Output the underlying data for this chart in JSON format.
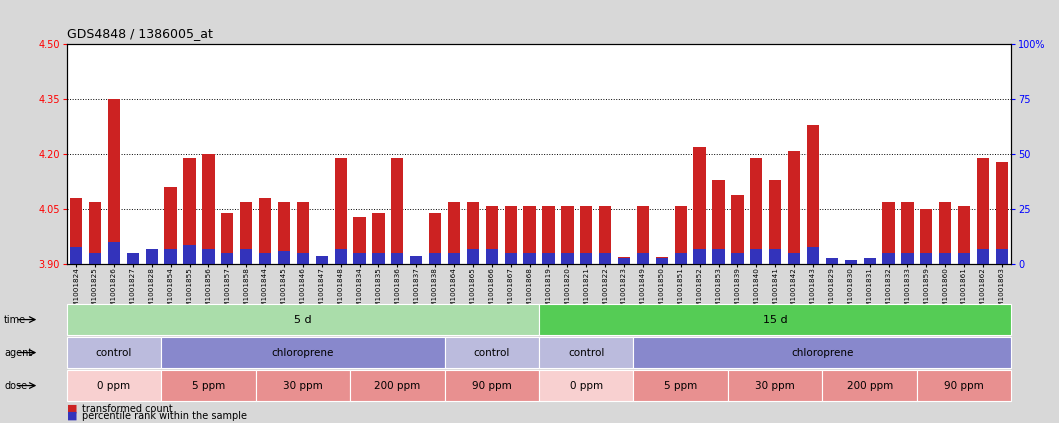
{
  "title": "GDS4848 / 1386005_at",
  "ylim": [
    3.9,
    4.5
  ],
  "yticks": [
    3.9,
    4.05,
    4.2,
    4.35,
    4.5
  ],
  "right_yticks": [
    0,
    25,
    50,
    75,
    100
  ],
  "right_ylim": [
    0,
    100
  ],
  "samples": [
    "GSM1001824",
    "GSM1001825",
    "GSM1001826",
    "GSM1001827",
    "GSM1001828",
    "GSM1001854",
    "GSM1001855",
    "GSM1001856",
    "GSM1001857",
    "GSM1001858",
    "GSM1001844",
    "GSM1001845",
    "GSM1001846",
    "GSM1001847",
    "GSM1001848",
    "GSM1001834",
    "GSM1001835",
    "GSM1001836",
    "GSM1001837",
    "GSM1001838",
    "GSM1001864",
    "GSM1001865",
    "GSM1001866",
    "GSM1001867",
    "GSM1001868",
    "GSM1001819",
    "GSM1001820",
    "GSM1001821",
    "GSM1001822",
    "GSM1001823",
    "GSM1001849",
    "GSM1001850",
    "GSM1001851",
    "GSM1001852",
    "GSM1001853",
    "GSM1001839",
    "GSM1001840",
    "GSM1001841",
    "GSM1001842",
    "GSM1001843",
    "GSM1001829",
    "GSM1001830",
    "GSM1001831",
    "GSM1001832",
    "GSM1001833",
    "GSM1001859",
    "GSM1001860",
    "GSM1001861",
    "GSM1001862",
    "GSM1001863"
  ],
  "red_values": [
    4.08,
    4.07,
    4.35,
    3.92,
    3.91,
    4.11,
    4.19,
    4.2,
    4.04,
    4.07,
    4.08,
    4.07,
    4.07,
    3.91,
    4.19,
    4.03,
    4.04,
    4.19,
    3.91,
    4.04,
    4.07,
    4.07,
    4.06,
    4.06,
    4.06,
    4.06,
    4.06,
    4.06,
    4.06,
    3.92,
    4.06,
    3.92,
    4.06,
    4.22,
    4.13,
    4.09,
    4.19,
    4.13,
    4.21,
    4.28,
    3.91,
    3.91,
    3.91,
    4.07,
    4.07,
    4.05,
    4.07,
    4.06,
    4.19,
    4.18
  ],
  "blue_values_pct": [
    8,
    5,
    10,
    5,
    7,
    7,
    9,
    7,
    5,
    7,
    5,
    6,
    5,
    4,
    7,
    5,
    5,
    5,
    4,
    5,
    5,
    7,
    7,
    5,
    5,
    5,
    5,
    5,
    5,
    3,
    5,
    3,
    5,
    7,
    7,
    5,
    7,
    7,
    5,
    8,
    3,
    2,
    3,
    5,
    5,
    5,
    5,
    5,
    7,
    7
  ],
  "base": 3.9,
  "chart_range": 0.6,
  "time_groups": [
    {
      "label": "5 d",
      "start": 0,
      "end": 25,
      "color": "#aaddaa"
    },
    {
      "label": "15 d",
      "start": 25,
      "end": 50,
      "color": "#55cc55"
    }
  ],
  "agent_groups": [
    {
      "label": "control",
      "start": 0,
      "end": 5,
      "color": "#bbbbdd"
    },
    {
      "label": "chloroprene",
      "start": 5,
      "end": 20,
      "color": "#8888cc"
    },
    {
      "label": "control",
      "start": 20,
      "end": 25,
      "color": "#bbbbdd"
    },
    {
      "label": "control",
      "start": 25,
      "end": 30,
      "color": "#bbbbdd"
    },
    {
      "label": "chloroprene",
      "start": 30,
      "end": 50,
      "color": "#8888cc"
    }
  ],
  "dose_groups": [
    {
      "label": "0 ppm",
      "start": 0,
      "end": 5,
      "color": "#f8d0d0"
    },
    {
      "label": "5 ppm",
      "start": 5,
      "end": 10,
      "color": "#e89090"
    },
    {
      "label": "30 ppm",
      "start": 10,
      "end": 15,
      "color": "#e89090"
    },
    {
      "label": "200 ppm",
      "start": 15,
      "end": 20,
      "color": "#e89090"
    },
    {
      "label": "90 ppm",
      "start": 20,
      "end": 25,
      "color": "#e89090"
    },
    {
      "label": "0 ppm",
      "start": 25,
      "end": 30,
      "color": "#f8d0d0"
    },
    {
      "label": "5 ppm",
      "start": 30,
      "end": 35,
      "color": "#e89090"
    },
    {
      "label": "30 ppm",
      "start": 35,
      "end": 40,
      "color": "#e89090"
    },
    {
      "label": "200 ppm",
      "start": 40,
      "end": 45,
      "color": "#e89090"
    },
    {
      "label": "90 ppm",
      "start": 45,
      "end": 50,
      "color": "#e89090"
    }
  ],
  "bar_color": "#cc2222",
  "blue_bar_color": "#3333bb",
  "background_color": "#d8d8d8",
  "plot_bg": "#ffffff",
  "grid_color": "#000000",
  "n_samples": 50
}
